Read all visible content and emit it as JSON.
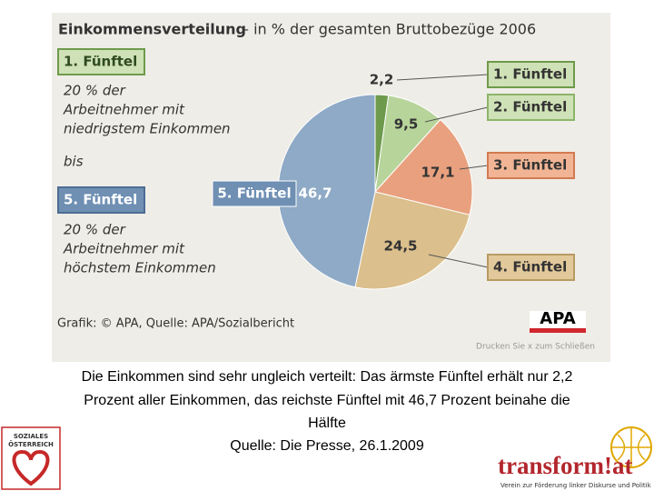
{
  "chart_data": {
    "type": "pie",
    "title": "Einkommensverteilung",
    "subtitle": "– in % der gesamten Bruttobezüge 2006",
    "categories": [
      "1. Fünftel",
      "2. Fünftel",
      "3. Fünftel",
      "4. Fünftel",
      "5. Fünftel"
    ],
    "values": [
      2.2,
      9.5,
      17.1,
      24.5,
      46.7
    ],
    "value_labels": [
      "2,2",
      "9,5",
      "17,1",
      "24,5",
      "46,7"
    ],
    "colors": [
      "#6e9a4c",
      "#b7d49a",
      "#e9a07e",
      "#dbbf8c",
      "#8eaac6"
    ],
    "annotations": [
      "20 % der",
      "Arbeitnehmer mit",
      "niedrigstem Einkommen",
      "bis",
      "20 % der",
      "Arbeitnehmer mit",
      "höchstem Einkommen"
    ],
    "source": "Grafik: © APA, Quelle: APA/Sozialbericht",
    "brand": "APA",
    "print_hint": "Drucken Sie x zum Schließen"
  },
  "caption": [
    "Die Einkommen sind sehr ungleich verteilt: Das ärmste Fünftel erhält nur 2,2",
    "Prozent aller Einkommen, das reichste Fünftel mit 46,7 Prozent beinahe die",
    "Hälfte",
    "Quelle: Die Presse, 26.1.2009"
  ],
  "logos": {
    "left": [
      "SOZIALES",
      "ÖSTERREICH"
    ],
    "right": "transform!at",
    "right_tagline": "Verein zur Förderung linker Diskurse und Politik"
  }
}
